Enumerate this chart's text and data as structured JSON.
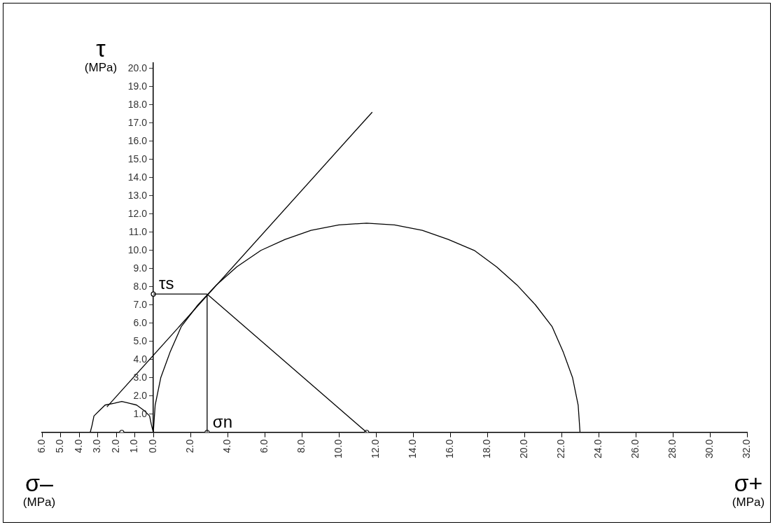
{
  "chart_data": {
    "type": "line",
    "ylabel": "τ\n(MPa)",
    "xlabel": "σ+\n(MPa)",
    "annotations": [
      {
        "text": "τs",
        "x": 0,
        "y": 7.6
      },
      {
        "text": "σn",
        "x": 2.9,
        "y": 0
      },
      "σ–\n(MPa)"
    ],
    "series": [
      {
        "color": "#000000",
        "x": [
          0,
          0.1,
          0.4,
          0.9,
          1.5,
          2.4,
          3.4,
          4.5,
          5.8,
          7.1,
          8.5,
          10.0,
          11.5,
          13.0,
          14.5,
          15.9,
          17.3,
          18.5,
          19.6,
          20.6,
          21.5,
          22.1,
          22.6,
          22.9,
          23
        ],
        "values": [
          0,
          1.5,
          3.0,
          4.4,
          5.8,
          7.0,
          8.1,
          9.1,
          10.0,
          10.6,
          11.1,
          11.4,
          11.5,
          11.4,
          11.1,
          10.6,
          10.0,
          9.1,
          8.1,
          7.0,
          5.8,
          4.4,
          3.0,
          1.5,
          0
        ]
      },
      {
        "color": "#000000",
        "x": [
          -3.4,
          -3.3,
          -3.2,
          -2.9,
          -2.6,
          -2.1,
          -1.7,
          -1.3,
          -0.9,
          -0.5,
          -0.2,
          -0.1,
          0
        ],
        "values": [
          0,
          0.4,
          0.9,
          1.2,
          1.5,
          1.6,
          1.7,
          1.6,
          1.5,
          1.2,
          0.9,
          0.4,
          0
        ]
      },
      {
        "color": "#000000",
        "x": [
          -2.5,
          11.8
        ],
        "values": [
          1.4,
          17.6
        ]
      },
      {
        "color": "#000000",
        "x": [
          0,
          2.9
        ],
        "values": [
          7.6,
          7.6
        ]
      },
      {
        "color": "#000000",
        "x": [
          2.9,
          2.9
        ],
        "values": [
          0,
          7.6
        ]
      },
      {
        "color": "#000000",
        "x": [
          2.9,
          11.5
        ],
        "values": [
          7.6,
          0
        ]
      },
      {
        "type": "scatter",
        "color": "#000000",
        "marker": "circle",
        "x": [
          0,
          2.9,
          11.5,
          -1.7
        ],
        "values": [
          7.6,
          0,
          0,
          0
        ]
      }
    ],
    "xlim": [
      -6,
      32
    ],
    "xticks": [
      {
        "value": -6,
        "label": "6.0"
      },
      {
        "value": -5,
        "label": "5.0"
      },
      {
        "value": -4,
        "label": "4.0"
      },
      {
        "value": -3,
        "label": "3.0"
      },
      {
        "value": -2,
        "label": "2.0"
      },
      {
        "value": -1,
        "label": "1.0"
      },
      {
        "value": 0,
        "label": "0.0"
      },
      {
        "value": 2,
        "label": "2.0"
      },
      {
        "value": 4,
        "label": "4.0"
      },
      {
        "value": 6,
        "label": "6.0"
      },
      {
        "value": 8,
        "label": "8.0"
      },
      {
        "value": 10,
        "label": "10.0"
      },
      {
        "value": 12,
        "label": "12.0"
      },
      {
        "value": 14,
        "label": "14.0"
      },
      {
        "value": 16,
        "label": "16.0"
      },
      {
        "value": 18,
        "label": "18.0"
      },
      {
        "value": 20,
        "label": "20.0"
      },
      {
        "value": 22,
        "label": "22.0"
      },
      {
        "value": 24,
        "label": "24.0"
      },
      {
        "value": 26,
        "label": "26.0"
      },
      {
        "value": 28,
        "label": "28.0"
      },
      {
        "value": 30,
        "label": "30.0"
      },
      {
        "value": 32,
        "label": "32.0"
      }
    ],
    "ylim": [
      0,
      20.3
    ],
    "yticks": [
      {
        "value": 1,
        "label": "1.0"
      },
      {
        "value": 2,
        "label": "2.0"
      },
      {
        "value": 3,
        "label": "3.0"
      },
      {
        "value": 4,
        "label": "4.0"
      },
      {
        "value": 5,
        "label": "5.0"
      },
      {
        "value": 6,
        "label": "6.0"
      },
      {
        "value": 7,
        "label": "7.0"
      },
      {
        "value": 8,
        "label": "8.0"
      },
      {
        "value": 9,
        "label": "9.0"
      },
      {
        "value": 10,
        "label": "10.0"
      },
      {
        "value": 11,
        "label": "11.0"
      },
      {
        "value": 12,
        "label": "12.0"
      },
      {
        "value": 13,
        "label": "13.0"
      },
      {
        "value": 14,
        "label": "14.0"
      },
      {
        "value": 15,
        "label": "15.0"
      },
      {
        "value": 16,
        "label": "16.0"
      },
      {
        "value": 17,
        "label": "17.0"
      },
      {
        "value": 18,
        "label": "18.0"
      },
      {
        "value": 19,
        "label": "19.0"
      },
      {
        "value": 20,
        "label": "20.0"
      }
    ],
    "grid": false,
    "legend": false
  }
}
